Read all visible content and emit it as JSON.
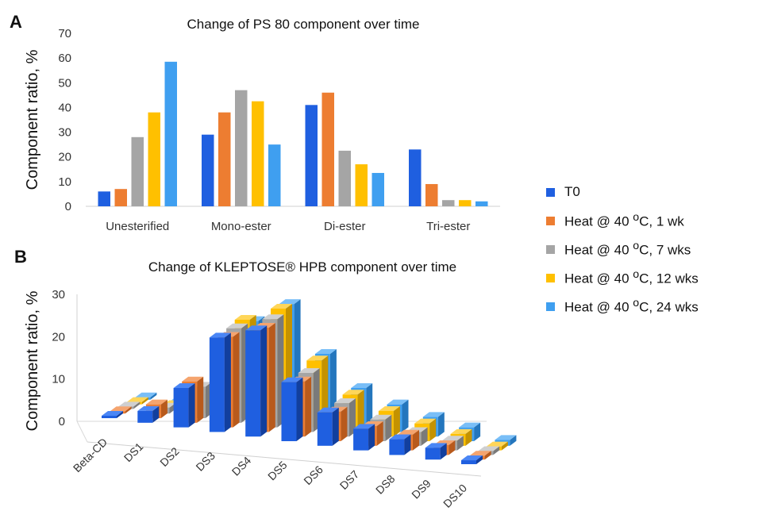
{
  "panel_a": {
    "letter": "A"
  },
  "panel_b": {
    "letter": "B"
  },
  "legend": [
    {
      "label_html": "T0",
      "color": "#1f5fe0",
      "top": "#4a86f5",
      "side": "#123f9e"
    },
    {
      "label_html": "Heat @ 40 <sup>o</sup>C, 1 wk",
      "color": "#ed7d31",
      "top": "#f5a46e",
      "side": "#b85a1c"
    },
    {
      "label_html": "Heat @ 40 <sup>o</sup>C, 7 wks",
      "color": "#a5a5a5",
      "top": "#cfcfcf",
      "side": "#7a7a7a"
    },
    {
      "label_html": "Heat @ 40 <sup>o</sup>C, 12 wks",
      "color": "#ffc000",
      "top": "#ffd659",
      "side": "#c49200"
    },
    {
      "label_html": "Heat @ 40 <sup>o</sup>C, 24 wks",
      "color": "#3f9ff0",
      "top": "#79bef7",
      "side": "#2476bd"
    }
  ],
  "chart_data": [
    {
      "type": "bar",
      "title": "Change of PS 80 component over time",
      "ylabel": "Component ratio, %",
      "categories": [
        "Unesterified",
        "Mono-ester",
        "Di-ester",
        "Tri-ester"
      ],
      "ylim": [
        0,
        70
      ],
      "yticks": [
        0,
        10,
        20,
        30,
        40,
        50,
        60,
        70
      ],
      "series": [
        {
          "name": "T0",
          "values": [
            6,
            29,
            41,
            23
          ]
        },
        {
          "name": "Heat @ 40 oC, 1 wk",
          "values": [
            7,
            38,
            46,
            9
          ]
        },
        {
          "name": "Heat @ 40 oC, 7 wks",
          "values": [
            28,
            47,
            22.5,
            2.5
          ]
        },
        {
          "name": "Heat @ 40 oC, 12 wks",
          "values": [
            38,
            42.5,
            17,
            2.5
          ]
        },
        {
          "name": "Heat @ 40 oC, 24 wks",
          "values": [
            58.5,
            25,
            13.5,
            2
          ]
        }
      ]
    },
    {
      "type": "bar",
      "title": "Change of KLEPTOSE® HPB component over time",
      "ylabel": "Component ratio, %",
      "categories": [
        "Beta-CD",
        "DS1",
        "DS2",
        "DS3",
        "DS4",
        "DS5",
        "DS6",
        "DS7",
        "DS8",
        "DS9",
        "DS10"
      ],
      "ylim": [
        0,
        30
      ],
      "yticks": [
        0,
        10,
        20,
        30
      ],
      "series": [
        {
          "name": "T0",
          "values": [
            0.5,
            3,
            10,
            24,
            27,
            15,
            8.5,
            5.5,
            4,
            3,
            1
          ]
        },
        {
          "name": "Heat @ 40 oC, 1 wk",
          "values": [
            0.5,
            3.5,
            10.5,
            23,
            26.5,
            14,
            7.5,
            5,
            4,
            2.5,
            1
          ]
        },
        {
          "name": "Heat @ 40 oC, 7 wks",
          "values": [
            0.5,
            1.5,
            8,
            24,
            27.5,
            15,
            8.5,
            5.5,
            3.5,
            2.5,
            1
          ]
        },
        {
          "name": "Heat @ 40 oC, 12 wks",
          "values": [
            0.5,
            1,
            5,
            25,
            29,
            17,
            9.5,
            6.5,
            4.5,
            3,
            1
          ]
        },
        {
          "name": "Heat @ 40 oC, 24 wks",
          "values": [
            0.5,
            1,
            4.5,
            23.5,
            29,
            17.5,
            10,
            7,
            5,
            3.5,
            1.5
          ]
        }
      ]
    }
  ]
}
